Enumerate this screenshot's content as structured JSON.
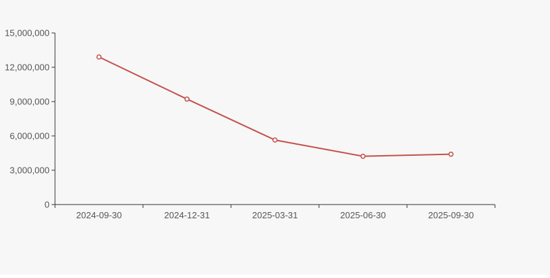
{
  "chart_data": {
    "type": "line",
    "title": "",
    "xlabel": "",
    "ylabel": "",
    "categories": [
      "2024-09-30",
      "2024-12-31",
      "2025-03-31",
      "2025-06-30",
      "2025-09-30"
    ],
    "series": [
      {
        "name": "series-1",
        "values": [
          12900000,
          9220000,
          5640000,
          4220000,
          4400000
        ]
      }
    ],
    "ylim": [
      0,
      15000000
    ],
    "y_ticks": [
      0,
      3000000,
      6000000,
      9000000,
      12000000,
      15000000
    ],
    "y_tick_labels": [
      "0",
      "3,000,000",
      "6,000,000",
      "9,000,000",
      "12,000,000",
      "15,000,000"
    ],
    "grid": "off",
    "legend": "none",
    "marker_style": "hollow-circle"
  },
  "colors": {
    "background": "#f7f7f7",
    "line": "#c5514c",
    "marker_fill": "#f9f7f7",
    "axis": "#333333",
    "tick_label": "#555555"
  }
}
